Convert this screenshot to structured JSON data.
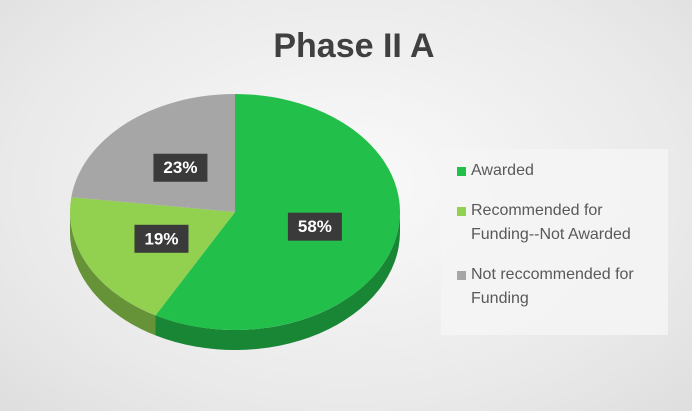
{
  "chart_data": {
    "type": "pie",
    "title": "Phase II A",
    "categories": [
      "Awarded",
      "Recommended for Funding--Not Awarded",
      "Not reccommended for Funding"
    ],
    "values": [
      58,
      19,
      23
    ],
    "value_labels": [
      "58%",
      "19%",
      "23%"
    ],
    "colors": [
      "#22bf4b",
      "#92d050",
      "#a6a6a6"
    ],
    "legend": "right"
  }
}
